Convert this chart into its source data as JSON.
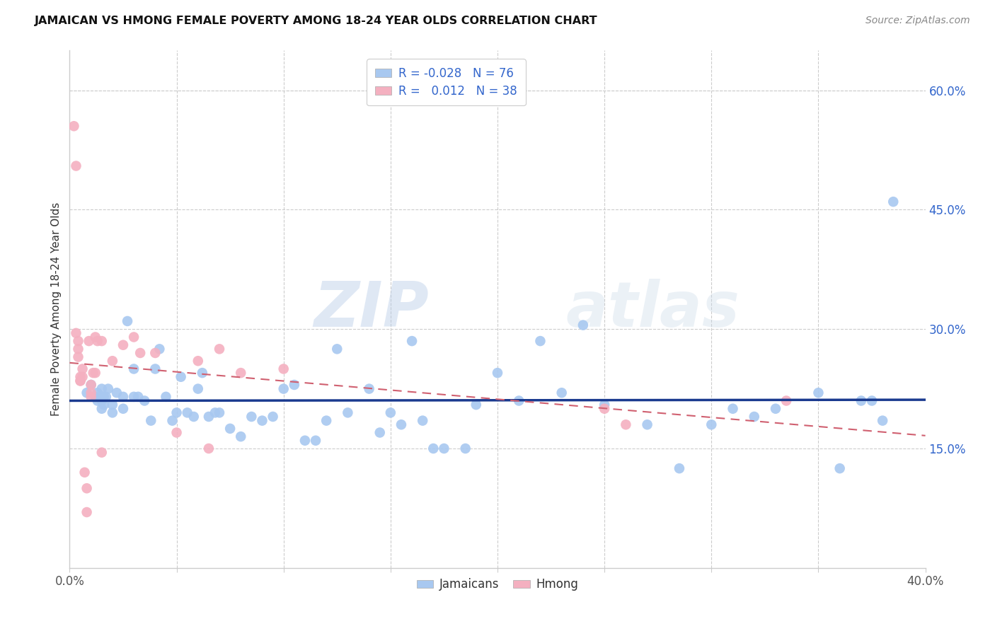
{
  "title": "JAMAICAN VS HMONG FEMALE POVERTY AMONG 18-24 YEAR OLDS CORRELATION CHART",
  "source": "Source: ZipAtlas.com",
  "ylabel": "Female Poverty Among 18-24 Year Olds",
  "xlim": [
    0.0,
    0.4
  ],
  "ylim": [
    0.0,
    0.65
  ],
  "xtick_positions": [
    0.0,
    0.05,
    0.1,
    0.15,
    0.2,
    0.25,
    0.3,
    0.35,
    0.4
  ],
  "xticklabels": [
    "0.0%",
    "",
    "",
    "",
    "",
    "",
    "",
    "",
    "40.0%"
  ],
  "ytick_positions": [
    0.15,
    0.3,
    0.45,
    0.6
  ],
  "ytick_labels": [
    "15.0%",
    "30.0%",
    "45.0%",
    "60.0%"
  ],
  "jamaican_R": "-0.028",
  "jamaican_N": "76",
  "hmong_R": "0.012",
  "hmong_N": "38",
  "jamaican_color": "#a8c8f0",
  "hmong_color": "#f4b0c0",
  "jamaican_line_color": "#1a3a8f",
  "hmong_line_color": "#d06070",
  "grid_color": "#cccccc",
  "background_color": "#ffffff",
  "watermark": "ZIPatlas",
  "jamaican_x": [
    0.008,
    0.01,
    0.012,
    0.013,
    0.013,
    0.015,
    0.015,
    0.015,
    0.016,
    0.016,
    0.017,
    0.018,
    0.02,
    0.02,
    0.022,
    0.025,
    0.025,
    0.027,
    0.03,
    0.03,
    0.032,
    0.035,
    0.038,
    0.04,
    0.042,
    0.045,
    0.048,
    0.05,
    0.052,
    0.055,
    0.058,
    0.06,
    0.062,
    0.065,
    0.068,
    0.07,
    0.075,
    0.08,
    0.085,
    0.09,
    0.095,
    0.1,
    0.105,
    0.11,
    0.115,
    0.12,
    0.125,
    0.13,
    0.14,
    0.145,
    0.15,
    0.155,
    0.16,
    0.165,
    0.17,
    0.175,
    0.185,
    0.19,
    0.2,
    0.21,
    0.22,
    0.23,
    0.24,
    0.25,
    0.27,
    0.285,
    0.3,
    0.31,
    0.32,
    0.33,
    0.35,
    0.36,
    0.37,
    0.375,
    0.38,
    0.385
  ],
  "jamaican_y": [
    0.22,
    0.23,
    0.215,
    0.21,
    0.22,
    0.225,
    0.21,
    0.2,
    0.215,
    0.205,
    0.215,
    0.225,
    0.195,
    0.205,
    0.22,
    0.2,
    0.215,
    0.31,
    0.215,
    0.25,
    0.215,
    0.21,
    0.185,
    0.25,
    0.275,
    0.215,
    0.185,
    0.195,
    0.24,
    0.195,
    0.19,
    0.225,
    0.245,
    0.19,
    0.195,
    0.195,
    0.175,
    0.165,
    0.19,
    0.185,
    0.19,
    0.225,
    0.23,
    0.16,
    0.16,
    0.185,
    0.275,
    0.195,
    0.225,
    0.17,
    0.195,
    0.18,
    0.285,
    0.185,
    0.15,
    0.15,
    0.15,
    0.205,
    0.245,
    0.21,
    0.285,
    0.22,
    0.305,
    0.205,
    0.18,
    0.125,
    0.18,
    0.2,
    0.19,
    0.2,
    0.22,
    0.125,
    0.21,
    0.21,
    0.185,
    0.46
  ],
  "hmong_x": [
    0.002,
    0.003,
    0.003,
    0.004,
    0.004,
    0.004,
    0.005,
    0.005,
    0.005,
    0.006,
    0.006,
    0.007,
    0.008,
    0.008,
    0.009,
    0.01,
    0.01,
    0.01,
    0.011,
    0.012,
    0.012,
    0.013,
    0.015,
    0.015,
    0.02,
    0.025,
    0.03,
    0.033,
    0.04,
    0.05,
    0.06,
    0.065,
    0.07,
    0.08,
    0.1,
    0.25,
    0.26,
    0.335
  ],
  "hmong_y": [
    0.555,
    0.505,
    0.295,
    0.285,
    0.275,
    0.265,
    0.235,
    0.24,
    0.235,
    0.24,
    0.25,
    0.12,
    0.1,
    0.07,
    0.285,
    0.215,
    0.22,
    0.23,
    0.245,
    0.245,
    0.29,
    0.285,
    0.285,
    0.145,
    0.26,
    0.28,
    0.29,
    0.27,
    0.27,
    0.17,
    0.26,
    0.15,
    0.275,
    0.245,
    0.25,
    0.2,
    0.18,
    0.21
  ]
}
